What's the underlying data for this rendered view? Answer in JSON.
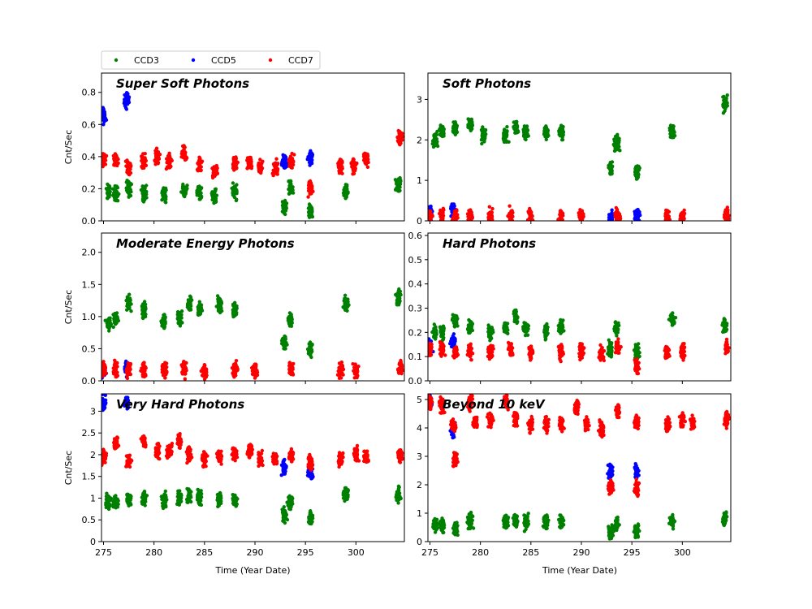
{
  "figure": {
    "xlabel": "Time (Year Date)",
    "ylabel": "Cnt/Sec",
    "xlim": [
      274.8,
      304.8
    ],
    "xticks": [
      275,
      280,
      285,
      290,
      295,
      300
    ]
  },
  "legend": {
    "placement": "top-left",
    "entries": [
      {
        "name": "CCD3",
        "color": "#008000"
      },
      {
        "name": "CCD5",
        "color": "#0000ff"
      },
      {
        "name": "CCD7",
        "color": "#ff0000"
      }
    ]
  },
  "chart_data": [
    {
      "type": "scatter",
      "title": "Super Soft Photons",
      "ylim": [
        0,
        0.92
      ],
      "yticks": [
        0.0,
        0.2,
        0.4,
        0.6,
        0.8
      ],
      "series": [
        {
          "name": "CCD3",
          "clusters": [
            [
              275.5,
              0.18
            ],
            [
              276.2,
              0.17
            ],
            [
              277.5,
              0.2
            ],
            [
              279,
              0.18
            ],
            [
              281,
              0.17
            ],
            [
              283,
              0.19
            ],
            [
              284.5,
              0.18
            ],
            [
              286,
              0.15
            ],
            [
              288,
              0.18
            ],
            [
              292.9,
              0.08
            ],
            [
              293.5,
              0.2
            ],
            [
              295.5,
              0.06
            ],
            [
              299,
              0.18
            ],
            [
              304.2,
              0.22
            ]
          ]
        },
        {
          "name": "CCD5",
          "clusters": [
            [
              275,
              0.65
            ],
            [
              277.3,
              0.75
            ],
            [
              292.9,
              0.37
            ],
            [
              295.5,
              0.4
            ]
          ]
        },
        {
          "name": "CCD7",
          "clusters": [
            [
              275,
              0.38
            ],
            [
              276.2,
              0.38
            ],
            [
              277.5,
              0.33
            ],
            [
              279,
              0.37
            ],
            [
              280.3,
              0.4
            ],
            [
              281.5,
              0.37
            ],
            [
              283,
              0.42
            ],
            [
              284.5,
              0.35
            ],
            [
              286,
              0.32
            ],
            [
              288,
              0.36
            ],
            [
              289.5,
              0.36
            ],
            [
              290.5,
              0.33
            ],
            [
              292,
              0.33
            ],
            [
              293.6,
              0.37
            ],
            [
              295.5,
              0.2
            ],
            [
              298.5,
              0.34
            ],
            [
              299.8,
              0.34
            ],
            [
              301,
              0.38
            ],
            [
              304.4,
              0.52
            ]
          ]
        }
      ]
    },
    {
      "type": "scatter",
      "title": "Soft Photons",
      "ylim": [
        0,
        3.65
      ],
      "yticks": [
        0,
        1,
        2,
        3
      ],
      "series": [
        {
          "name": "CCD3",
          "clusters": [
            [
              275.5,
              2.0
            ],
            [
              276.2,
              2.2
            ],
            [
              277.5,
              2.3
            ],
            [
              279,
              2.4
            ],
            [
              280.3,
              2.1
            ],
            [
              282.5,
              2.1
            ],
            [
              283.5,
              2.3
            ],
            [
              284.5,
              2.2
            ],
            [
              286.5,
              2.2
            ],
            [
              288,
              2.2
            ],
            [
              292.9,
              1.3
            ],
            [
              293.5,
              1.9
            ],
            [
              295.5,
              1.2
            ],
            [
              299,
              2.2
            ],
            [
              304.2,
              2.9
            ]
          ]
        },
        {
          "name": "CCD5",
          "clusters": [
            [
              275,
              0.2
            ],
            [
              277.3,
              0.25
            ],
            [
              292.9,
              0.1
            ],
            [
              295.5,
              0.1
            ]
          ]
        },
        {
          "name": "CCD7",
          "clusters": [
            [
              275,
              0.12
            ],
            [
              276.2,
              0.12
            ],
            [
              277.5,
              0.1
            ],
            [
              279,
              0.1
            ],
            [
              281,
              0.1
            ],
            [
              283,
              0.12
            ],
            [
              285,
              0.1
            ],
            [
              288,
              0.1
            ],
            [
              290,
              0.1
            ],
            [
              293.6,
              0.12
            ],
            [
              298.5,
              0.1
            ],
            [
              300,
              0.1
            ],
            [
              304.4,
              0.15
            ]
          ]
        }
      ]
    },
    {
      "type": "scatter",
      "title": "Moderate Energy Photons",
      "ylim": [
        0,
        2.3
      ],
      "yticks": [
        0.0,
        0.5,
        1.0,
        1.5,
        2.0
      ],
      "series": [
        {
          "name": "CCD3",
          "clusters": [
            [
              275.5,
              0.9
            ],
            [
              276.2,
              0.95
            ],
            [
              277.5,
              1.2
            ],
            [
              279,
              1.1
            ],
            [
              281,
              0.9
            ],
            [
              282.5,
              1.0
            ],
            [
              283.5,
              1.2
            ],
            [
              284.5,
              1.1
            ],
            [
              286.5,
              1.2
            ],
            [
              288,
              1.1
            ],
            [
              292.9,
              0.6
            ],
            [
              293.5,
              0.95
            ],
            [
              295.5,
              0.5
            ],
            [
              299,
              1.2
            ],
            [
              304.2,
              1.3
            ]
          ]
        },
        {
          "name": "CCD5",
          "clusters": [
            [
              275,
              0.15
            ],
            [
              277.3,
              0.2
            ]
          ]
        },
        {
          "name": "CCD7",
          "clusters": [
            [
              275,
              0.18
            ],
            [
              276.2,
              0.18
            ],
            [
              277.5,
              0.17
            ],
            [
              279,
              0.18
            ],
            [
              281,
              0.18
            ],
            [
              283,
              0.18
            ],
            [
              285,
              0.15
            ],
            [
              288,
              0.18
            ],
            [
              290,
              0.17
            ],
            [
              293.6,
              0.17
            ],
            [
              298.5,
              0.16
            ],
            [
              300,
              0.16
            ],
            [
              304.4,
              0.2
            ]
          ]
        }
      ]
    },
    {
      "type": "scatter",
      "title": "Hard Photons",
      "ylim": [
        0,
        0.61
      ],
      "yticks": [
        0.0,
        0.1,
        0.2,
        0.3,
        0.4,
        0.5,
        0.6
      ],
      "series": [
        {
          "name": "CCD3",
          "clusters": [
            [
              275.5,
              0.2
            ],
            [
              276.2,
              0.2
            ],
            [
              277.5,
              0.25
            ],
            [
              279,
              0.22
            ],
            [
              281,
              0.2
            ],
            [
              282.5,
              0.22
            ],
            [
              283.5,
              0.27
            ],
            [
              284.5,
              0.22
            ],
            [
              286.5,
              0.2
            ],
            [
              288,
              0.22
            ],
            [
              292.9,
              0.13
            ],
            [
              293.5,
              0.22
            ],
            [
              295.5,
              0.12
            ],
            [
              299,
              0.25
            ],
            [
              304.2,
              0.22
            ]
          ]
        },
        {
          "name": "CCD5",
          "clusters": [
            [
              275,
              0.14
            ],
            [
              277.3,
              0.16
            ]
          ]
        },
        {
          "name": "CCD7",
          "clusters": [
            [
              275,
              0.13
            ],
            [
              276.2,
              0.13
            ],
            [
              277.5,
              0.12
            ],
            [
              279,
              0.12
            ],
            [
              281,
              0.12
            ],
            [
              283,
              0.13
            ],
            [
              285,
              0.12
            ],
            [
              288,
              0.12
            ],
            [
              290,
              0.12
            ],
            [
              292,
              0.11
            ],
            [
              293.6,
              0.14
            ],
            [
              295.5,
              0.06
            ],
            [
              298.5,
              0.12
            ],
            [
              300,
              0.12
            ],
            [
              304.4,
              0.14
            ]
          ]
        }
      ]
    },
    {
      "type": "scatter",
      "title": "Very Hard Photons",
      "ylim": [
        0,
        3.4
      ],
      "yticks": [
        0.0,
        0.5,
        1.0,
        1.5,
        2.0,
        2.5,
        3.0
      ],
      "series": [
        {
          "name": "CCD3",
          "clusters": [
            [
              275.5,
              0.9
            ],
            [
              276.2,
              0.9
            ],
            [
              277.5,
              1.0
            ],
            [
              279,
              1.0
            ],
            [
              281,
              0.95
            ],
            [
              282.5,
              1.0
            ],
            [
              283.5,
              1.05
            ],
            [
              284.5,
              1.0
            ],
            [
              286.5,
              1.0
            ],
            [
              288,
              0.95
            ],
            [
              292.9,
              0.6
            ],
            [
              293.5,
              0.9
            ],
            [
              295.5,
              0.55
            ],
            [
              299,
              1.1
            ],
            [
              304.2,
              1.1
            ]
          ]
        },
        {
          "name": "CCD5",
          "clusters": [
            [
              275,
              3.2
            ],
            [
              277.3,
              3.2
            ],
            [
              292.9,
              1.7
            ],
            [
              295.5,
              1.6
            ]
          ]
        },
        {
          "name": "CCD7",
          "clusters": [
            [
              275,
              1.95
            ],
            [
              276.2,
              2.3
            ],
            [
              277.5,
              1.85
            ],
            [
              279,
              2.3
            ],
            [
              280.3,
              2.05
            ],
            [
              281.5,
              2.1
            ],
            [
              282.5,
              2.3
            ],
            [
              283.5,
              2.0
            ],
            [
              285,
              1.9
            ],
            [
              286.5,
              1.95
            ],
            [
              288,
              2.0
            ],
            [
              289.5,
              2.1
            ],
            [
              290.5,
              1.9
            ],
            [
              292,
              1.9
            ],
            [
              293.6,
              2.0
            ],
            [
              295.5,
              1.8
            ],
            [
              298.5,
              1.9
            ],
            [
              300,
              2.0
            ],
            [
              301,
              1.95
            ],
            [
              304.4,
              2.0
            ]
          ]
        }
      ]
    },
    {
      "type": "scatter",
      "title": "Beyond 10 keV",
      "ylim": [
        0,
        5.2
      ],
      "yticks": [
        0,
        1,
        2,
        3,
        4,
        5
      ],
      "series": [
        {
          "name": "CCD3",
          "clusters": [
            [
              275.5,
              0.6
            ],
            [
              276.2,
              0.6
            ],
            [
              277.5,
              0.45
            ],
            [
              279,
              0.7
            ],
            [
              282.5,
              0.7
            ],
            [
              283.5,
              0.7
            ],
            [
              284.5,
              0.7
            ],
            [
              286.5,
              0.7
            ],
            [
              288,
              0.7
            ],
            [
              292.9,
              0.35
            ],
            [
              293.5,
              0.6
            ],
            [
              295.5,
              0.35
            ],
            [
              299,
              0.75
            ],
            [
              304.2,
              0.8
            ]
          ]
        },
        {
          "name": "CCD5",
          "clusters": [
            [
              275,
              4.9
            ],
            [
              277.3,
              3.9
            ],
            [
              292.9,
              2.5
            ],
            [
              295.5,
              2.45
            ]
          ]
        },
        {
          "name": "CCD7",
          "clusters": [
            [
              275,
              4.9
            ],
            [
              276.2,
              4.8
            ],
            [
              277.3,
              4.1
            ],
            [
              277.5,
              2.9
            ],
            [
              279,
              4.9
            ],
            [
              279.5,
              4.2
            ],
            [
              281,
              4.3
            ],
            [
              282.5,
              4.9
            ],
            [
              283.5,
              4.3
            ],
            [
              285,
              4.1
            ],
            [
              286.5,
              4.1
            ],
            [
              288,
              4.2
            ],
            [
              289.5,
              4.7
            ],
            [
              290.5,
              4.1
            ],
            [
              292,
              4.0
            ],
            [
              292.9,
              1.9
            ],
            [
              293.6,
              4.6
            ],
            [
              295.5,
              4.2
            ],
            [
              295.5,
              1.9
            ],
            [
              298.5,
              4.1
            ],
            [
              300,
              4.3
            ],
            [
              301,
              4.2
            ],
            [
              304.4,
              4.3
            ]
          ]
        }
      ]
    }
  ]
}
